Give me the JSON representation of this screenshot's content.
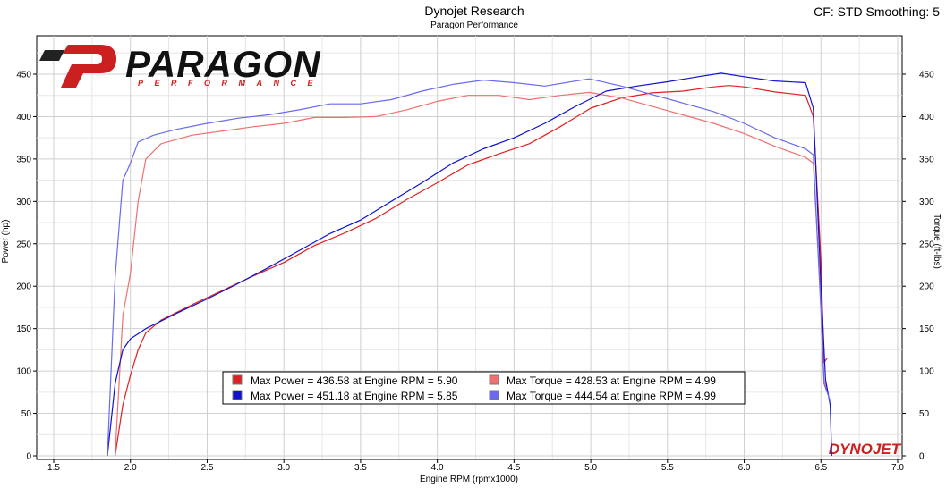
{
  "header": {
    "title": "Dynojet Research",
    "subtitle": "Paragon Performance",
    "settings": "CF: STD Smoothing: 5"
  },
  "logo": {
    "name": "PARAGON",
    "tagline": "PERFORMANCE"
  },
  "watermark": "DYNOJET",
  "chart_data": {
    "type": "line",
    "xlabel": "Engine RPM (rpmx1000)",
    "ylabel_left": "Power (hp)",
    "ylabel_right": "Torque (ft-lbs)",
    "xlim": [
      1.4,
      7.0
    ],
    "ylim": [
      0,
      490
    ],
    "x_ticks": [
      1.5,
      2.0,
      2.5,
      3.0,
      3.5,
      4.0,
      4.5,
      5.0,
      5.5,
      6.0,
      6.5,
      7.0
    ],
    "x_tick_labels": [
      "1.5",
      "2.0",
      "2.5",
      "3.0",
      "3.5",
      "4.0",
      "4.5",
      "5.0",
      "5.5",
      "6.0",
      "6.5",
      "7.0"
    ],
    "y_ticks": [
      0,
      50,
      100,
      150,
      200,
      250,
      300,
      350,
      400,
      450
    ],
    "y_tick_labels": [
      "0",
      "50",
      "100",
      "150",
      "200",
      "250",
      "300",
      "350",
      "400",
      "450"
    ],
    "grid": true,
    "series": [
      {
        "color": "#e02020",
        "points": [
          [
            1.9,
            0
          ],
          [
            1.95,
            60
          ],
          [
            2.0,
            95
          ],
          [
            2.05,
            125
          ],
          [
            2.1,
            145
          ],
          [
            2.2,
            160
          ],
          [
            2.4,
            178
          ],
          [
            2.6,
            195
          ],
          [
            2.8,
            212
          ],
          [
            3.0,
            228
          ],
          [
            3.2,
            248
          ],
          [
            3.4,
            263
          ],
          [
            3.6,
            280
          ],
          [
            3.8,
            302
          ],
          [
            4.0,
            322
          ],
          [
            4.2,
            343
          ],
          [
            4.4,
            356
          ],
          [
            4.6,
            368
          ],
          [
            4.8,
            388
          ],
          [
            5.0,
            410
          ],
          [
            5.2,
            422
          ],
          [
            5.4,
            428
          ],
          [
            5.6,
            430
          ],
          [
            5.8,
            435
          ],
          [
            5.9,
            436.58
          ],
          [
            6.0,
            435
          ],
          [
            6.2,
            429
          ],
          [
            6.4,
            425
          ],
          [
            6.45,
            400
          ],
          [
            6.5,
            230
          ],
          [
            6.52,
            110
          ],
          [
            6.54,
            115
          ]
        ]
      },
      {
        "color": "#f07070",
        "points": [
          [
            1.9,
            0
          ],
          [
            1.95,
            165
          ],
          [
            2.0,
            215
          ],
          [
            2.05,
            300
          ],
          [
            2.1,
            350
          ],
          [
            2.2,
            368
          ],
          [
            2.4,
            378
          ],
          [
            2.6,
            383
          ],
          [
            2.8,
            388
          ],
          [
            3.0,
            392
          ],
          [
            3.2,
            399
          ],
          [
            3.4,
            399
          ],
          [
            3.6,
            400
          ],
          [
            3.8,
            408
          ],
          [
            4.0,
            418
          ],
          [
            4.2,
            425
          ],
          [
            4.4,
            425
          ],
          [
            4.6,
            420
          ],
          [
            4.8,
            425
          ],
          [
            4.99,
            428.53
          ],
          [
            5.2,
            422
          ],
          [
            5.4,
            412
          ],
          [
            5.6,
            402
          ],
          [
            5.8,
            392
          ],
          [
            6.0,
            380
          ],
          [
            6.2,
            365
          ],
          [
            6.4,
            352
          ],
          [
            6.45,
            345
          ],
          [
            6.5,
            180
          ],
          [
            6.52,
            90
          ],
          [
            6.55,
            70
          ]
        ]
      },
      {
        "color": "#1010d0",
        "points": [
          [
            1.85,
            0
          ],
          [
            1.9,
            85
          ],
          [
            1.95,
            125
          ],
          [
            2.0,
            138
          ],
          [
            2.1,
            150
          ],
          [
            2.3,
            168
          ],
          [
            2.5,
            185
          ],
          [
            2.7,
            203
          ],
          [
            2.9,
            222
          ],
          [
            3.1,
            242
          ],
          [
            3.3,
            262
          ],
          [
            3.5,
            278
          ],
          [
            3.7,
            300
          ],
          [
            3.9,
            322
          ],
          [
            4.1,
            345
          ],
          [
            4.3,
            362
          ],
          [
            4.5,
            375
          ],
          [
            4.7,
            392
          ],
          [
            4.9,
            412
          ],
          [
            5.1,
            430
          ],
          [
            5.3,
            436
          ],
          [
            5.5,
            441
          ],
          [
            5.7,
            447
          ],
          [
            5.85,
            451.18
          ],
          [
            6.0,
            447
          ],
          [
            6.2,
            442
          ],
          [
            6.4,
            440
          ],
          [
            6.45,
            410
          ],
          [
            6.5,
            200
          ],
          [
            6.53,
            90
          ],
          [
            6.56,
            60
          ],
          [
            6.57,
            0
          ]
        ]
      },
      {
        "color": "#6a6aee",
        "points": [
          [
            1.85,
            0
          ],
          [
            1.9,
            210
          ],
          [
            1.95,
            325
          ],
          [
            2.0,
            345
          ],
          [
            2.05,
            370
          ],
          [
            2.15,
            378
          ],
          [
            2.3,
            385
          ],
          [
            2.5,
            392
          ],
          [
            2.7,
            398
          ],
          [
            2.9,
            402
          ],
          [
            3.1,
            408
          ],
          [
            3.3,
            415
          ],
          [
            3.5,
            415
          ],
          [
            3.7,
            420
          ],
          [
            3.9,
            430
          ],
          [
            4.1,
            438
          ],
          [
            4.3,
            443
          ],
          [
            4.5,
            440
          ],
          [
            4.7,
            436
          ],
          [
            4.99,
            444.54
          ],
          [
            5.2,
            436
          ],
          [
            5.4,
            426
          ],
          [
            5.6,
            416
          ],
          [
            5.8,
            406
          ],
          [
            6.0,
            392
          ],
          [
            6.2,
            375
          ],
          [
            6.4,
            362
          ],
          [
            6.45,
            355
          ],
          [
            6.5,
            170
          ],
          [
            6.52,
            85
          ],
          [
            6.56,
            65
          ]
        ]
      }
    ],
    "legend": [
      {
        "color": "#e02020",
        "text": "Max Power = 436.58 at Engine RPM = 5.90"
      },
      {
        "color": "#f07070",
        "text": "Max Torque = 428.53 at Engine RPM = 4.99"
      },
      {
        "color": "#1010d0",
        "text": "Max Power = 451.18 at Engine RPM = 5.85"
      },
      {
        "color": "#6a6aee",
        "text": "Max Torque = 444.54 at Engine RPM = 4.99"
      }
    ],
    "legend_position": "bottom-center"
  }
}
